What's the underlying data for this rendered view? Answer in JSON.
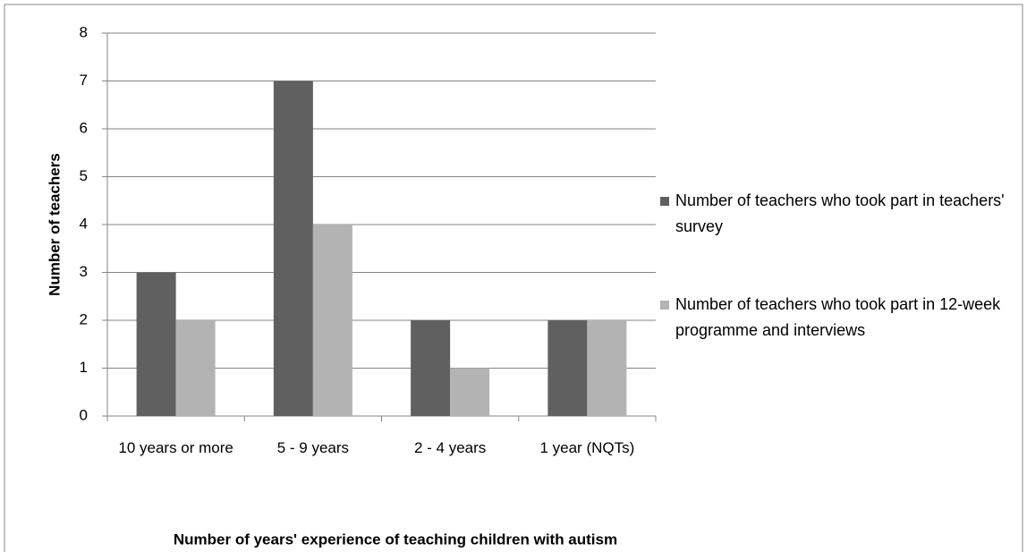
{
  "chart_data": {
    "type": "bar",
    "categories": [
      "10 years or more",
      "5 - 9 years",
      "2 - 4 years",
      "1 year (NQTs)"
    ],
    "series": [
      {
        "name": "Number of teachers who took part in teachers' survey",
        "color": "#606060",
        "values": [
          3,
          7,
          2,
          2
        ]
      },
      {
        "name": "Number of teachers who took part in 12-week programme and interviews",
        "color": "#b3b3b3",
        "values": [
          2,
          4,
          1,
          2
        ]
      }
    ],
    "ylim": [
      0,
      8
    ],
    "yticks": [
      0,
      1,
      2,
      3,
      4,
      5,
      6,
      7,
      8
    ],
    "grid": true,
    "y_label": "Number of teachers",
    "x_label": "Number of years' experience of teaching children with autism",
    "legend": "right"
  }
}
